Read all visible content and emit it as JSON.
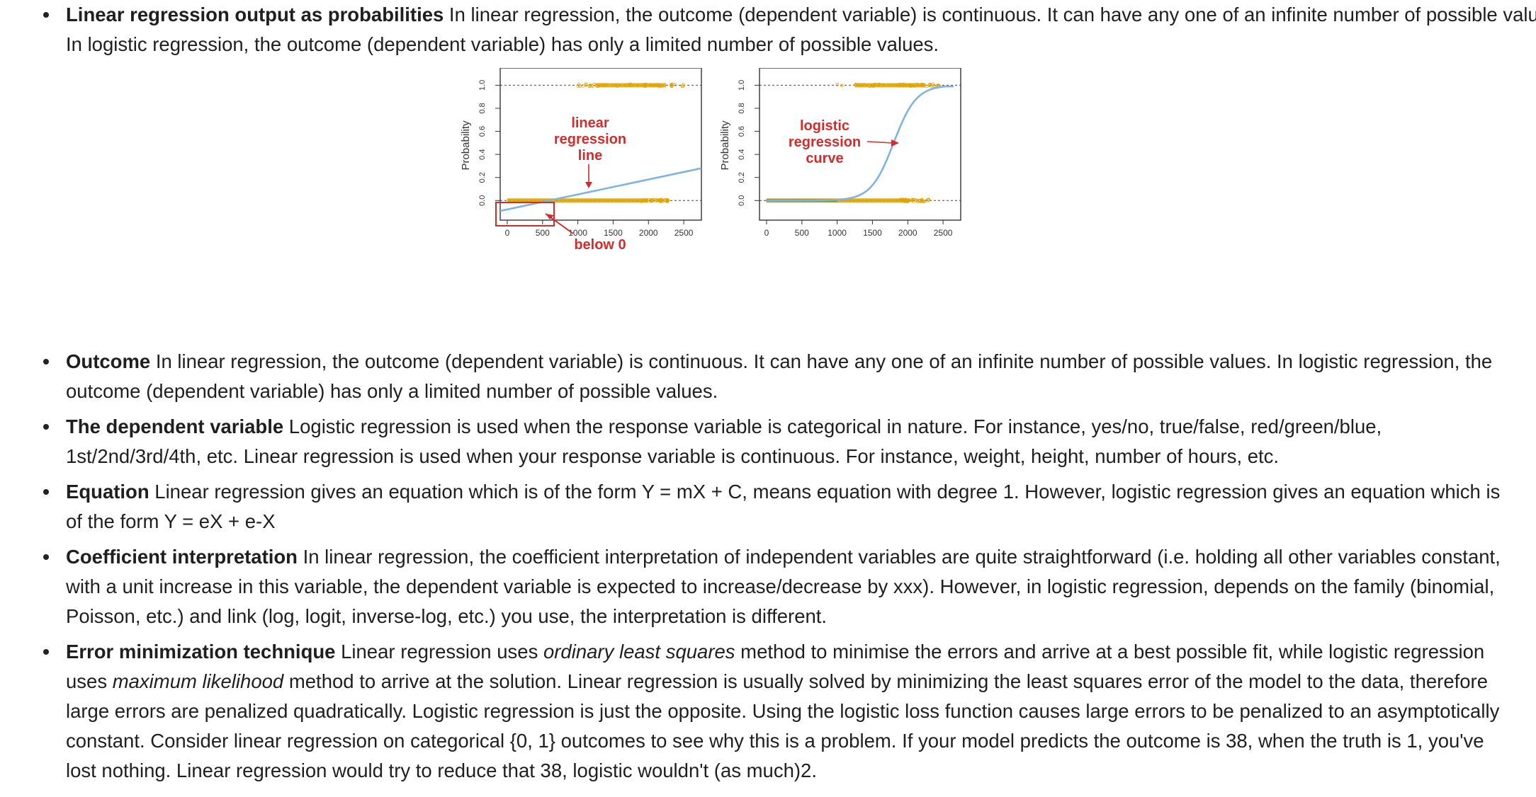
{
  "bullets": {
    "linear_output": {
      "heading": "Linear regression output as probabilities",
      "text": " In linear regression, the outcome (dependent variable) is continuous. It can have any one of an infinite number of possible values. In logistic regression, the outcome (dependent variable) has only a limited number of possible values."
    },
    "outcome": {
      "heading": "Outcome",
      "text": " In linear regression, the outcome (dependent variable) is continuous. It can have any one of an infinite number of possible values. In logistic regression, the outcome (dependent variable) has only a limited number of possible values."
    },
    "dependent": {
      "heading": "The dependent variable",
      "text": " Logistic regression is used when the response variable is categorical in nature. For instance, yes/no, true/false, red/green/blue, 1st/2nd/3rd/4th, etc. Linear regression is used when your response variable is continuous. For instance, weight, height, number of hours, etc."
    },
    "equation": {
      "heading": "Equation",
      "text": " Linear regression gives an equation which is of the form Y = mX + C, means equation with degree 1. However, logistic regression gives an equation which is of the form Y = eX + e-X"
    },
    "coefficient": {
      "heading": "Coefficient interpretation",
      "text": " In linear regression, the coefficient interpretation of independent variables are quite straightforward (i.e. holding all other variables constant, with a unit increase in this variable, the dependent variable is expected to increase/decrease by xxx). However, in logistic regression, depends on the family (binomial, Poisson, etc.) and link (log, logit, inverse-log, etc.) you use, the interpretation is different."
    },
    "error": {
      "heading": "Error minimization technique",
      "t1": " Linear regression uses ",
      "i1": "ordinary least squares",
      "t2": " method to minimise the errors and arrive at a best possible fit, while logistic regression uses ",
      "i2": "maximum likelihood",
      "t3": " method to arrive at the solution. Linear regression is usually solved by minimizing the least squares error of the model to the data, therefore large errors are penalized quadratically. Logistic regression is just the opposite. Using the logistic loss function causes large errors to be penalized to an asymptotically constant. Consider linear regression on categorical {0, 1} outcomes to see why this is a problem. If your model predicts the outcome is 38, when the truth is 1, you've lost nothing. Linear regression would try to reduce that 38, logistic wouldn't (as much)2."
    }
  },
  "chart_data": [
    {
      "type": "line",
      "ylabel": "Probability",
      "xticks": [
        "0",
        "500",
        "1000",
        "1500",
        "2000",
        "2500"
      ],
      "yticks": [
        "0.0",
        "0.2",
        "0.4",
        "0.6",
        "0.8",
        "1.0"
      ],
      "xlim": [
        -100,
        2750
      ],
      "ylim": [
        -0.17,
        1.15
      ],
      "series": [
        {
          "x": [
            -100,
            2750
          ],
          "y": [
            -0.09,
            0.28
          ]
        }
      ],
      "annotations": [
        "linear\nregression\nline",
        "below 0"
      ],
      "colors": {
        "line": "#7fb3e0",
        "points": "#e0a400",
        "points_alt": "#6b8e23",
        "annotation": "#d42b2b"
      }
    },
    {
      "type": "line",
      "ylabel": "Probability",
      "xticks": [
        "0",
        "500",
        "1000",
        "1500",
        "2000",
        "2500"
      ],
      "yticks": [
        "0.0",
        "0.2",
        "0.4",
        "0.6",
        "0.8",
        "1.0"
      ],
      "xlim": [
        -100,
        2750
      ],
      "ylim": [
        -0.17,
        1.15
      ],
      "series": [
        {
          "x": [
            -10,
            1000,
            1500,
            1800,
            2000,
            2200,
            2400,
            2650
          ],
          "y": [
            0.0,
            0.0,
            0.06,
            0.45,
            0.8,
            0.93,
            0.98,
            0.99
          ]
        }
      ],
      "annotations": [
        "logistic\nregression\ncurve"
      ],
      "colors": {
        "line": "#7fb3e0",
        "points": "#e0a400",
        "points_alt": "#6b8e23",
        "annotation": "#d42b2b"
      }
    }
  ]
}
